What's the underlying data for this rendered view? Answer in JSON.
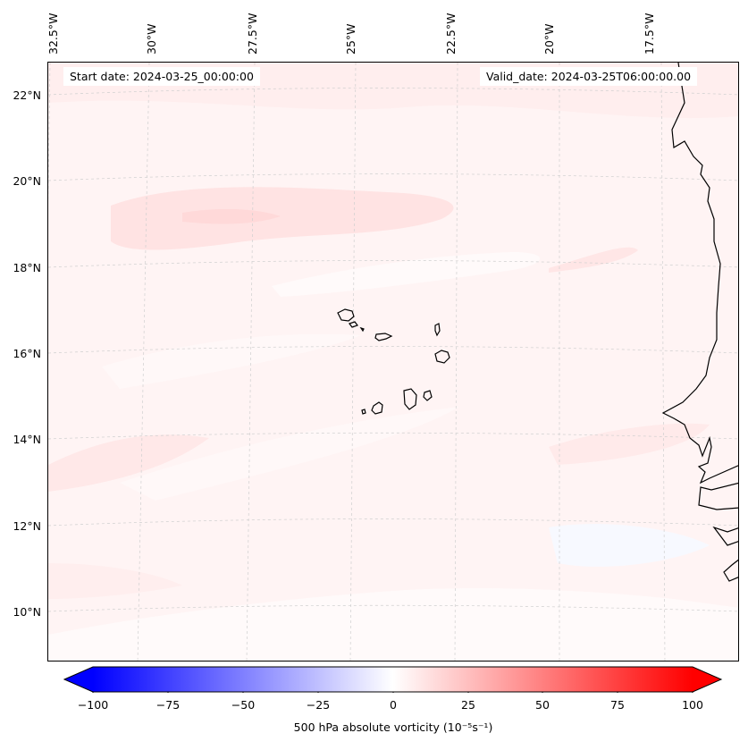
{
  "header": {
    "start_date": "Start date: 2024-03-25_00:00:00",
    "valid_date": "Valid_date: 2024-03-25T06:00:00.00"
  },
  "map": {
    "longitude_labels": [
      "32.5°W",
      "30°W",
      "27.5°W",
      "25°W",
      "22.5°W",
      "20°W",
      "17.5°W"
    ],
    "latitude_labels": [
      "22°N",
      "20°N",
      "18°N",
      "16°N",
      "14°N",
      "12°N",
      "10°N"
    ],
    "gridlines": true,
    "features": [
      "coastline-west-africa",
      "cape-verde-islands"
    ]
  },
  "colorbar": {
    "label": "500 hPa absolute vorticity (10⁻⁵s⁻¹)",
    "ticks": [
      "−100",
      "−75",
      "−50",
      "−25",
      "0",
      "25",
      "50",
      "75",
      "100"
    ],
    "range": [
      -100,
      100
    ],
    "colormap": "bwr",
    "extend": "both"
  },
  "colors": {
    "negative": "#0000ff",
    "neutral": "#ffffff",
    "positive": "#ff0000"
  }
}
